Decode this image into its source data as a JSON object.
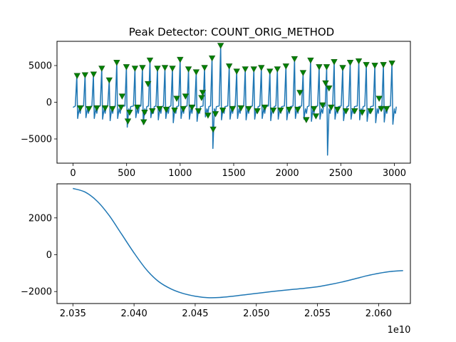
{
  "chart_data": [
    {
      "type": "line",
      "title": "Peak Detector: COUNT_ORIG_METHOD",
      "xlabel": "",
      "ylabel": "",
      "xlim": [
        -150,
        3150
      ],
      "ylim": [
        -8300,
        8300
      ],
      "xticks": [
        0,
        500,
        1000,
        1500,
        2000,
        2500,
        3000
      ],
      "xtick_labels": [
        "0",
        "500",
        "1000",
        "1500",
        "2000",
        "2500",
        "3000"
      ],
      "yticks": [
        -5000,
        0,
        5000
      ],
      "ytick_labels": [
        "−5000",
        "0",
        "5000"
      ],
      "grid": false,
      "series": [
        {
          "role": "signal",
          "color": "#1f77b4",
          "cycle_peaks": [
            {
              "x": 35,
              "peak": 3600,
              "dip": -2200
            },
            {
              "x": 112,
              "peak": 3700,
              "dip": -2100
            },
            {
              "x": 190,
              "peak": 3700,
              "dip": -2200
            },
            {
              "x": 268,
              "peak": 4600,
              "dip": -2300
            },
            {
              "x": 338,
              "peak": 3000,
              "dip": -2500
            },
            {
              "x": 408,
              "peak": 5400,
              "dip": -2200
            },
            {
              "x": 498,
              "peak": 4800,
              "dip": -3400
            },
            {
              "x": 578,
              "peak": 4600,
              "dip": -2100
            },
            {
              "x": 648,
              "peak": 4700,
              "dip": -3000
            },
            {
              "x": 718,
              "peak": 5700,
              "dip": -2100
            },
            {
              "x": 788,
              "peak": 4600,
              "dip": -2400
            },
            {
              "x": 858,
              "peak": 4700,
              "dip": -2200
            },
            {
              "x": 928,
              "peak": 4600,
              "dip": -2800
            },
            {
              "x": 1000,
              "peak": 5800,
              "dip": -2200
            },
            {
              "x": 1078,
              "peak": 4500,
              "dip": -2300
            },
            {
              "x": 1150,
              "peak": 4100,
              "dip": -2600
            },
            {
              "x": 1228,
              "peak": 4700,
              "dip": -2000
            },
            {
              "x": 1298,
              "peak": 6000,
              "dip": -6300
            },
            {
              "x": 1378,
              "peak": 7700,
              "dip": -2400
            },
            {
              "x": 1458,
              "peak": 4900,
              "dip": -2300
            },
            {
              "x": 1528,
              "peak": 4200,
              "dip": -2200
            },
            {
              "x": 1608,
              "peak": 4500,
              "dip": -2400
            },
            {
              "x": 1688,
              "peak": 4500,
              "dip": -2300
            },
            {
              "x": 1758,
              "peak": 4700,
              "dip": -2200
            },
            {
              "x": 1838,
              "peak": 4200,
              "dip": -2500
            },
            {
              "x": 1908,
              "peak": 4500,
              "dip": -2300
            },
            {
              "x": 1988,
              "peak": 4900,
              "dip": -2400
            },
            {
              "x": 2068,
              "peak": 5900,
              "dip": -2200
            },
            {
              "x": 2148,
              "peak": 4000,
              "dip": -2300
            },
            {
              "x": 2218,
              "peak": 5700,
              "dip": -2600
            },
            {
              "x": 2298,
              "peak": 4800,
              "dip": -2300
            },
            {
              "x": 2368,
              "peak": 4800,
              "dip": -7200
            },
            {
              "x": 2438,
              "peak": 5500,
              "dip": -2300
            },
            {
              "x": 2518,
              "peak": 4700,
              "dip": -2500
            },
            {
              "x": 2588,
              "peak": 5400,
              "dip": -2300
            },
            {
              "x": 2668,
              "peak": 5600,
              "dip": -2400
            },
            {
              "x": 2738,
              "peak": 5100,
              "dip": -2600
            },
            {
              "x": 2818,
              "peak": 5000,
              "dip": -2800
            },
            {
              "x": 2898,
              "peak": 5100,
              "dip": -2700
            },
            {
              "x": 2978,
              "peak": 5300,
              "dip": -3000
            }
          ]
        },
        {
          "role": "detected_peaks",
          "marker": "triangle-down",
          "color": "#008000",
          "points": [
            [
              38,
              3600
            ],
            [
              68,
              -800
            ],
            [
              112,
              3700
            ],
            [
              148,
              -900
            ],
            [
              192,
              3800
            ],
            [
              222,
              -800
            ],
            [
              268,
              4600
            ],
            [
              300,
              -800
            ],
            [
              338,
              3000
            ],
            [
              368,
              -900
            ],
            [
              408,
              5400
            ],
            [
              448,
              -700
            ],
            [
              458,
              800
            ],
            [
              498,
              4800
            ],
            [
              512,
              -2600
            ],
            [
              528,
              -1400
            ],
            [
              578,
              4600
            ],
            [
              600,
              -700
            ],
            [
              648,
              4700
            ],
            [
              660,
              -2700
            ],
            [
              668,
              -1400
            ],
            [
              700,
              2500
            ],
            [
              718,
              5700
            ],
            [
              740,
              -1200
            ],
            [
              788,
              4600
            ],
            [
              808,
              -900
            ],
            [
              858,
              4700
            ],
            [
              870,
              -1000
            ],
            [
              928,
              4600
            ],
            [
              948,
              -1100
            ],
            [
              968,
              500
            ],
            [
              1000,
              5800
            ],
            [
              1030,
              -900
            ],
            [
              1050,
              800
            ],
            [
              1078,
              4500
            ],
            [
              1110,
              -700
            ],
            [
              1150,
              4100
            ],
            [
              1170,
              -1200
            ],
            [
              1200,
              600
            ],
            [
              1210,
              1300
            ],
            [
              1228,
              4700
            ],
            [
              1260,
              -1800
            ],
            [
              1298,
              6000
            ],
            [
              1308,
              -3700
            ],
            [
              1330,
              -1600
            ],
            [
              1378,
              7700
            ],
            [
              1398,
              -1100
            ],
            [
              1458,
              4900
            ],
            [
              1490,
              -900
            ],
            [
              1528,
              4200
            ],
            [
              1568,
              -800
            ],
            [
              1608,
              4500
            ],
            [
              1640,
              -900
            ],
            [
              1688,
              4500
            ],
            [
              1720,
              -1200
            ],
            [
              1758,
              4700
            ],
            [
              1790,
              -700
            ],
            [
              1838,
              4200
            ],
            [
              1870,
              -1100
            ],
            [
              1908,
              4500
            ],
            [
              1938,
              -1100
            ],
            [
              1988,
              4900
            ],
            [
              2018,
              -1000
            ],
            [
              2068,
              5900
            ],
            [
              2098,
              -1000
            ],
            [
              2118,
              1300
            ],
            [
              2148,
              4000
            ],
            [
              2178,
              -2400
            ],
            [
              2218,
              5700
            ],
            [
              2250,
              -900
            ],
            [
              2268,
              -1900
            ],
            [
              2298,
              4800
            ],
            [
              2330,
              -400
            ],
            [
              2358,
              2600
            ],
            [
              2368,
              4800
            ],
            [
              2390,
              1900
            ],
            [
              2410,
              -700
            ],
            [
              2438,
              5500
            ],
            [
              2470,
              -1000
            ],
            [
              2518,
              4700
            ],
            [
              2548,
              -1200
            ],
            [
              2588,
              5400
            ],
            [
              2630,
              -1200
            ],
            [
              2668,
              5600
            ],
            [
              2700,
              -1400
            ],
            [
              2738,
              5100
            ],
            [
              2778,
              -1200
            ],
            [
              2818,
              5000
            ],
            [
              2858,
              500
            ],
            [
              2878,
              -900
            ],
            [
              2898,
              5100
            ],
            [
              2928,
              -900
            ],
            [
              2978,
              5300
            ]
          ]
        }
      ]
    },
    {
      "type": "line",
      "title": "",
      "xlabel": "",
      "ylabel": "",
      "x_offset_label": "1e10",
      "xlim": [
        2.0337,
        2.0626
      ],
      "ylim": [
        -2650,
        3850
      ],
      "xticks": [
        2.035,
        2.04,
        2.045,
        2.05,
        2.055,
        2.06
      ],
      "xtick_labels": [
        "2.035",
        "2.040",
        "2.045",
        "2.050",
        "2.055",
        "2.060"
      ],
      "yticks": [
        -2000,
        0,
        2000
      ],
      "ytick_labels": [
        "−2000",
        "0",
        "2000"
      ],
      "grid": false,
      "series": [
        {
          "color": "#1f77b4",
          "x": [
            2.035,
            2.036,
            2.037,
            2.038,
            2.039,
            2.04,
            2.041,
            2.042,
            2.043,
            2.044,
            2.045,
            2.046,
            2.047,
            2.048,
            2.049,
            2.05,
            2.051,
            2.052,
            2.053,
            2.054,
            2.055,
            2.056,
            2.057,
            2.058,
            2.059,
            2.06,
            2.061,
            2.062
          ],
          "values": [
            3600,
            3400,
            2900,
            2100,
            1100,
            100,
            -800,
            -1450,
            -1850,
            -2100,
            -2250,
            -2330,
            -2320,
            -2260,
            -2180,
            -2100,
            -2020,
            -1950,
            -1880,
            -1820,
            -1740,
            -1620,
            -1480,
            -1320,
            -1150,
            -1010,
            -910,
            -860
          ]
        }
      ]
    }
  ]
}
